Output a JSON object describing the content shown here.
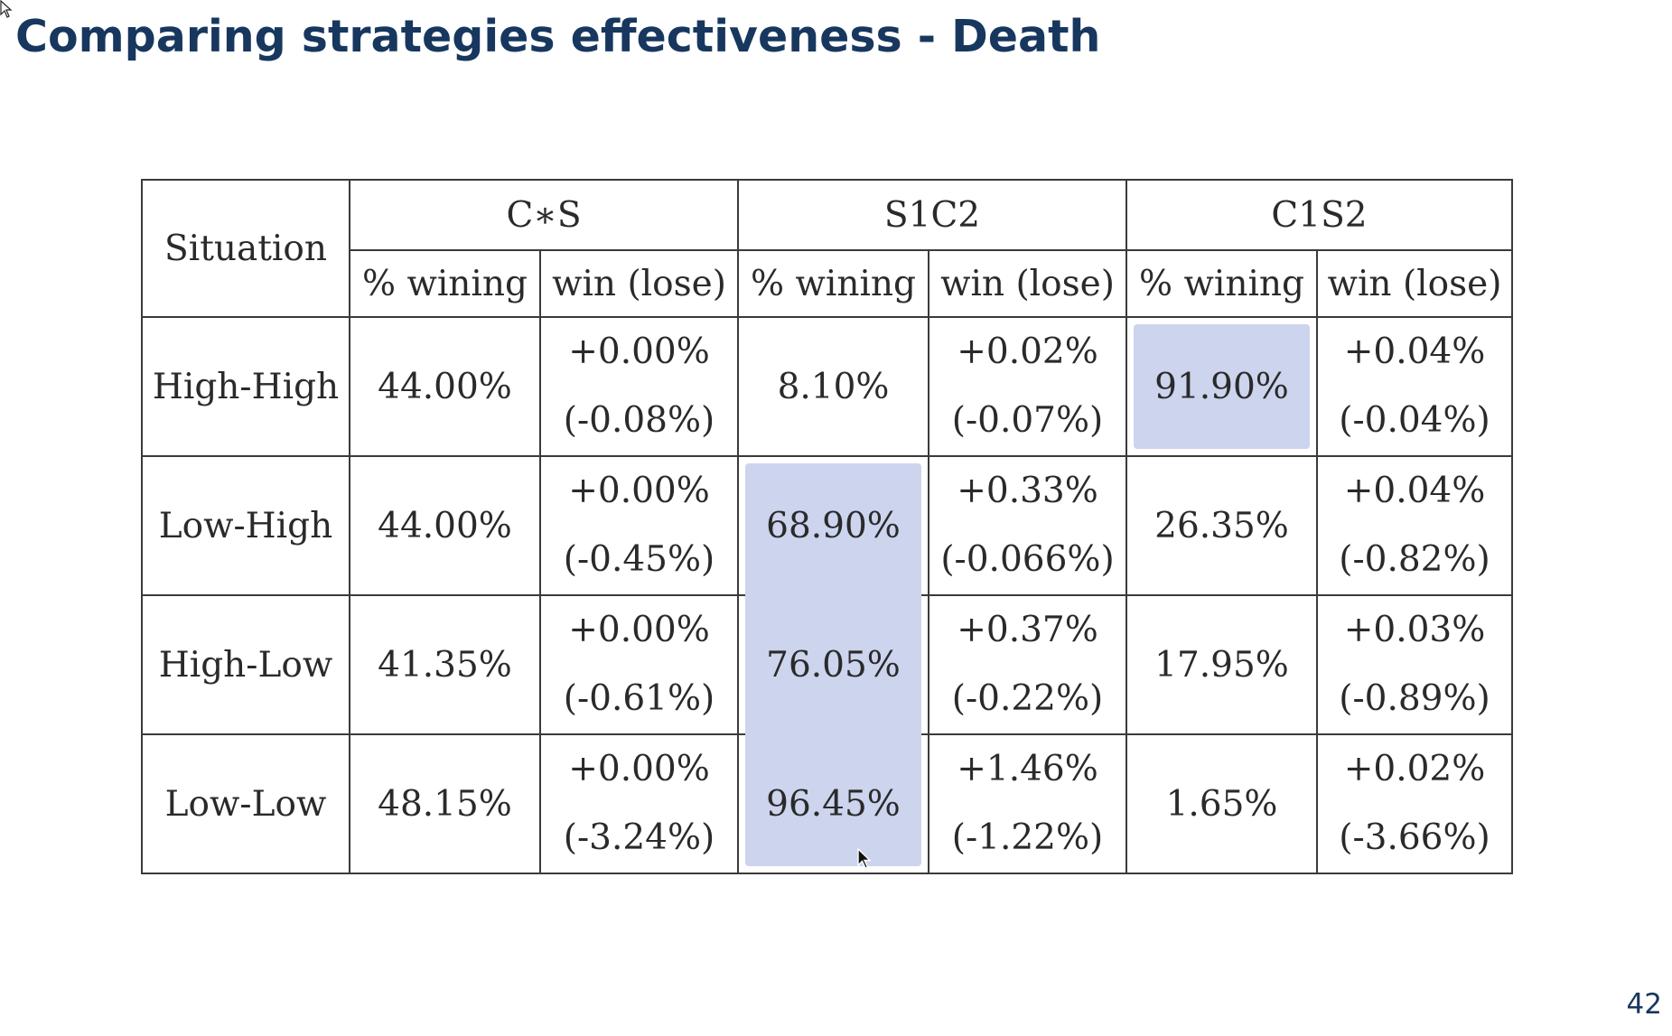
{
  "title": "Comparing strategies effectiveness - Death",
  "page_number": "42",
  "table": {
    "row_header": "Situation",
    "groups": [
      "C∗S",
      "S1C2",
      "C1S2"
    ],
    "subheaders": [
      "% wining",
      "win (lose)",
      "% wining",
      "win (lose)",
      "% wining",
      "win (lose)"
    ],
    "rows": [
      {
        "situation": "High-High",
        "cs_pct": "44.00%",
        "cs_win": "+0.00%",
        "cs_lose": "(-0.08%)",
        "s1c2_pct": "8.10%",
        "s1c2_win": "+0.02%",
        "s1c2_lose": "(-0.07%)",
        "c1s2_pct": "91.90%",
        "c1s2_win": "+0.04%",
        "c1s2_lose": "(-0.04%)"
      },
      {
        "situation": "Low-High",
        "cs_pct": "44.00%",
        "cs_win": "+0.00%",
        "cs_lose": "(-0.45%)",
        "s1c2_pct": "68.90%",
        "s1c2_win": "+0.33%",
        "s1c2_lose": "(-0.066%)",
        "c1s2_pct": "26.35%",
        "c1s2_win": "+0.04%",
        "c1s2_lose": "(-0.82%)"
      },
      {
        "situation": "High-Low",
        "cs_pct": "41.35%",
        "cs_win": "+0.00%",
        "cs_lose": "(-0.61%)",
        "s1c2_pct": "76.05%",
        "s1c2_win": "+0.37%",
        "s1c2_lose": "(-0.22%)",
        "c1s2_pct": "17.95%",
        "c1s2_win": "+0.03%",
        "c1s2_lose": "(-0.89%)"
      },
      {
        "situation": "Low-Low",
        "cs_pct": "48.15%",
        "cs_win": "+0.00%",
        "cs_lose": "(-3.24%)",
        "s1c2_pct": "96.45%",
        "s1c2_win": "+1.46%",
        "s1c2_lose": "(-1.22%)",
        "c1s2_pct": "1.65%",
        "c1s2_win": "+0.02%",
        "c1s2_lose": "(-3.66%)"
      }
    ]
  },
  "highlight_color": "#ccd4ee",
  "title_color": "#17375e",
  "icons": [
    "mouse-cursor-icon"
  ]
}
